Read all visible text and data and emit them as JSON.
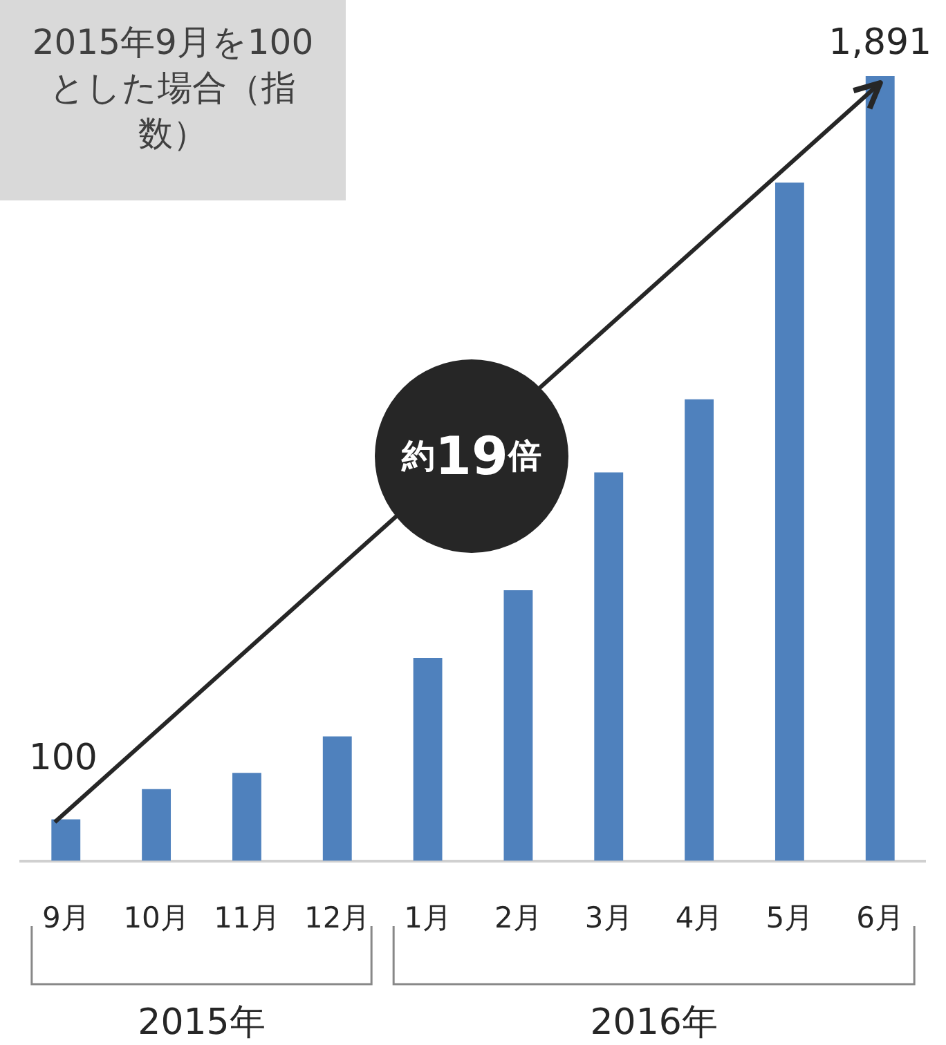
{
  "chart_data": {
    "type": "bar",
    "title": "2015年9月を100とした場合（指数）",
    "categories": [
      "9月",
      "10月",
      "11月",
      "12月",
      "1月",
      "2月",
      "3月",
      "4月",
      "5月",
      "6月"
    ],
    "values": [
      100,
      173,
      212,
      300,
      489,
      652,
      936,
      1112,
      1634,
      1891
    ],
    "value_labels": [
      "100",
      null,
      null,
      null,
      null,
      null,
      null,
      null,
      null,
      "1,891"
    ],
    "color": "#4f81bd",
    "grid": false,
    "legend": false,
    "annotations": [
      "約19倍",
      "2015年",
      "2016年"
    ]
  }
}
